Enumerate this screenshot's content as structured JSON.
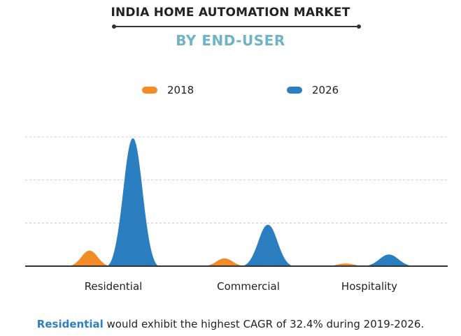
{
  "title": "INDIA HOME AUTOMATION MARKET",
  "subtitle": "BY END-USER",
  "footer": {
    "highlight": "Residential",
    "rest": " would exhibit the highest CAGR of 32.4% during 2019-2026."
  },
  "colors": {
    "s2018": "#f28c28",
    "s2026": "#2b7fc0",
    "grid": "#cccccc",
    "axis": "#333333"
  },
  "chart_data": {
    "type": "area",
    "categories": [
      "Residential",
      "Commercial",
      "Hospitality"
    ],
    "series": [
      {
        "name": "2018",
        "values": [
          1.2,
          0.6,
          0.2
        ]
      },
      {
        "name": "2026",
        "values": [
          9.9,
          3.2,
          0.9
        ]
      }
    ],
    "ylim": [
      0,
      10
    ],
    "grid": true,
    "legend": "top-center",
    "xlabel": "",
    "ylabel": ""
  }
}
